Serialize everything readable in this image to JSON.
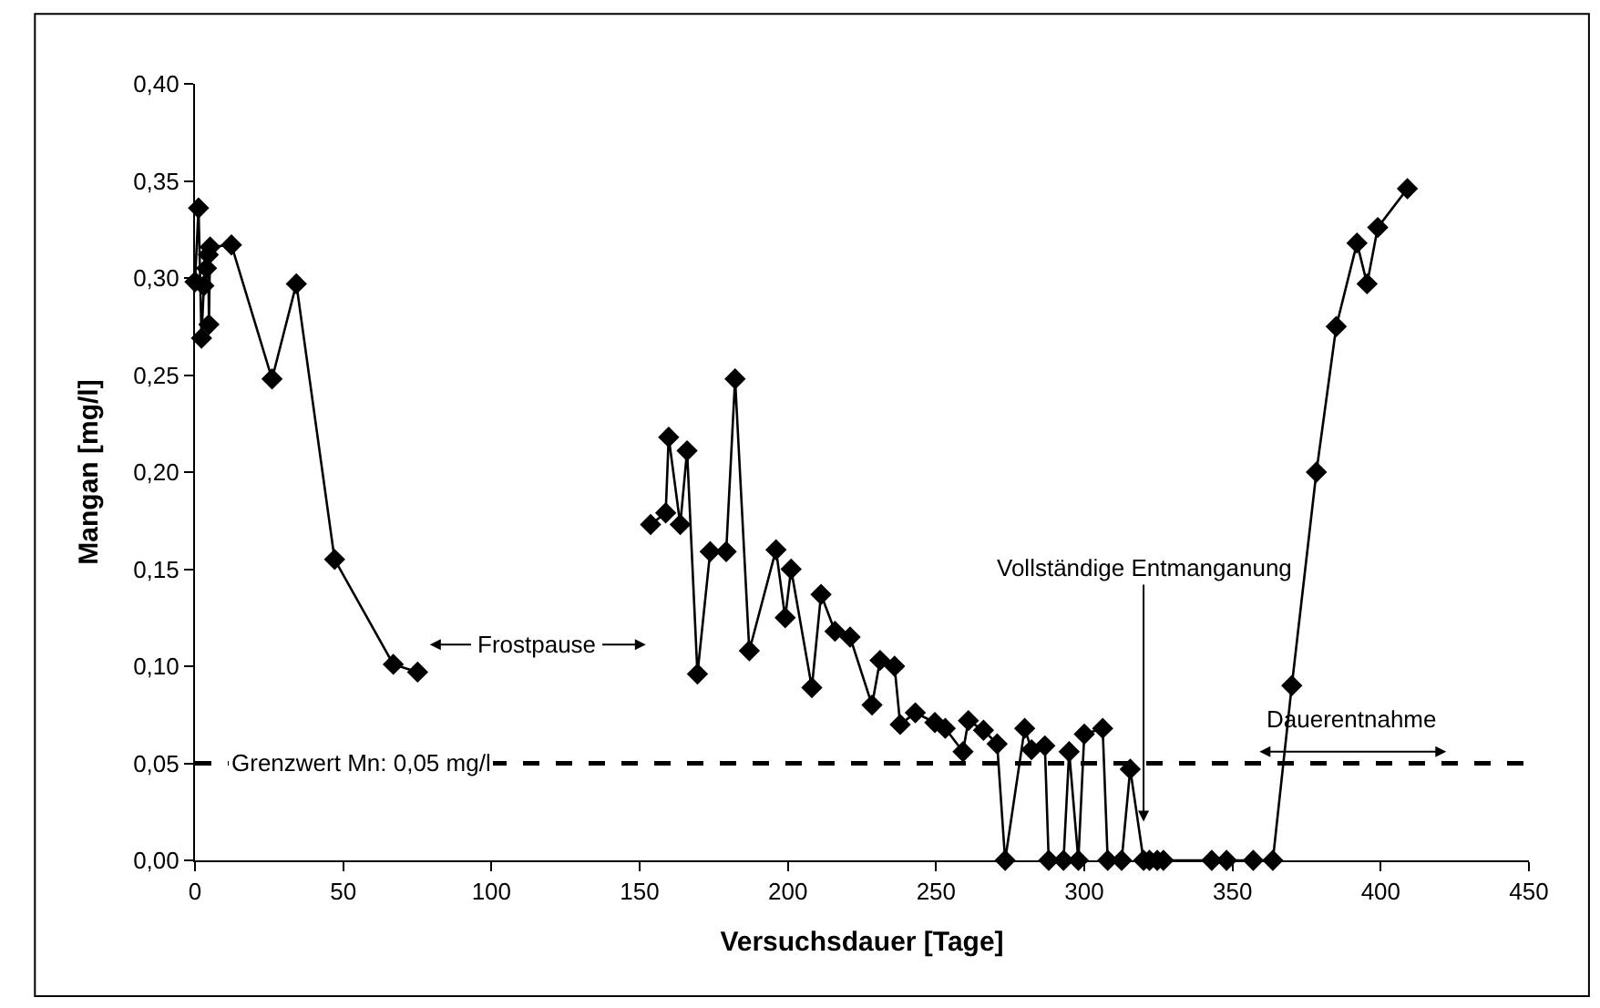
{
  "chart_data": {
    "type": "line",
    "xlabel": "Versuchsdauer [Tage]",
    "ylabel": "Mangan [mg/l]",
    "marker": "diamond",
    "line_style": "solid",
    "grid": false,
    "xlim": [
      0,
      450
    ],
    "xticks": [
      0,
      50,
      100,
      150,
      200,
      250,
      300,
      350,
      400,
      450
    ],
    "ylim": [
      0,
      0.4
    ],
    "yticks": [
      {
        "value": 0,
        "label": "0,00"
      },
      {
        "value": 0.05,
        "label": "0,05"
      },
      {
        "value": 0.1,
        "label": "0,10"
      },
      {
        "value": 0.15,
        "label": "0,15"
      },
      {
        "value": 0.2,
        "label": "0,20"
      },
      {
        "value": 0.25,
        "label": "0,25"
      },
      {
        "value": 0.3,
        "label": "0,30"
      },
      {
        "value": 0.35,
        "label": "0,35"
      },
      {
        "value": 0.4,
        "label": "0,40"
      }
    ],
    "series": [
      {
        "color": "#000000",
        "x": [
          0,
          1.2,
          2.2,
          3,
          3.9,
          4.5,
          4.7,
          5.1,
          12.3,
          26,
          34.2,
          47.1,
          66.9,
          75.1
        ],
        "values": [
          0.298,
          0.336,
          0.269,
          0.296,
          0.305,
          0.312,
          0.276,
          0.316,
          0.317,
          0.248,
          0.297,
          0.155,
          0.101,
          0.097
        ]
      },
      {
        "color": "#000000",
        "x": [
          153.7,
          158.8,
          159.8,
          163.7,
          166,
          169.5,
          173.8,
          179.2,
          182.2,
          187,
          196,
          199.1,
          201.1,
          208.1,
          211.2,
          215.9,
          221,
          228.4,
          231.1,
          236,
          237.9,
          243,
          249.6,
          253.1,
          259.1,
          260.9,
          266,
          270.6,
          273.3,
          279.9,
          282.2,
          286.7,
          288,
          293,
          294.9,
          298,
          300,
          306.2,
          307.9,
          312.6,
          315.5,
          320,
          322,
          324.6,
          326.7,
          343,
          348,
          357,
          363.6,
          370,
          378.3,
          385,
          392,
          395.4,
          399,
          409
        ],
        "values": [
          0.173,
          0.179,
          0.218,
          0.173,
          0.211,
          0.096,
          0.159,
          0.159,
          0.248,
          0.108,
          0.16,
          0.125,
          0.15,
          0.089,
          0.137,
          0.118,
          0.115,
          0.08,
          0.103,
          0.1,
          0.07,
          0.076,
          0.071,
          0.068,
          0.056,
          0.072,
          0.067,
          0.06,
          0,
          0.068,
          0.057,
          0.059,
          0,
          0,
          0.056,
          0,
          0.065,
          0.068,
          0,
          0,
          0.047,
          0,
          0,
          0,
          0,
          0,
          0,
          0,
          0,
          0.09,
          0.2,
          0.275,
          0.318,
          0.297,
          0.326,
          0.346
        ]
      }
    ],
    "ref_lines": [
      {
        "axis": "y",
        "value": 0.05,
        "label": "Grenzwert Mn: 0,05 mg/l",
        "color": "#000000",
        "line_style": "dashed"
      }
    ],
    "annotations": [
      "Frostpause",
      "Dauerentnahme",
      {
        "text": "Vollständige Entmanganung",
        "x": 320,
        "y": 0.02
      }
    ]
  }
}
